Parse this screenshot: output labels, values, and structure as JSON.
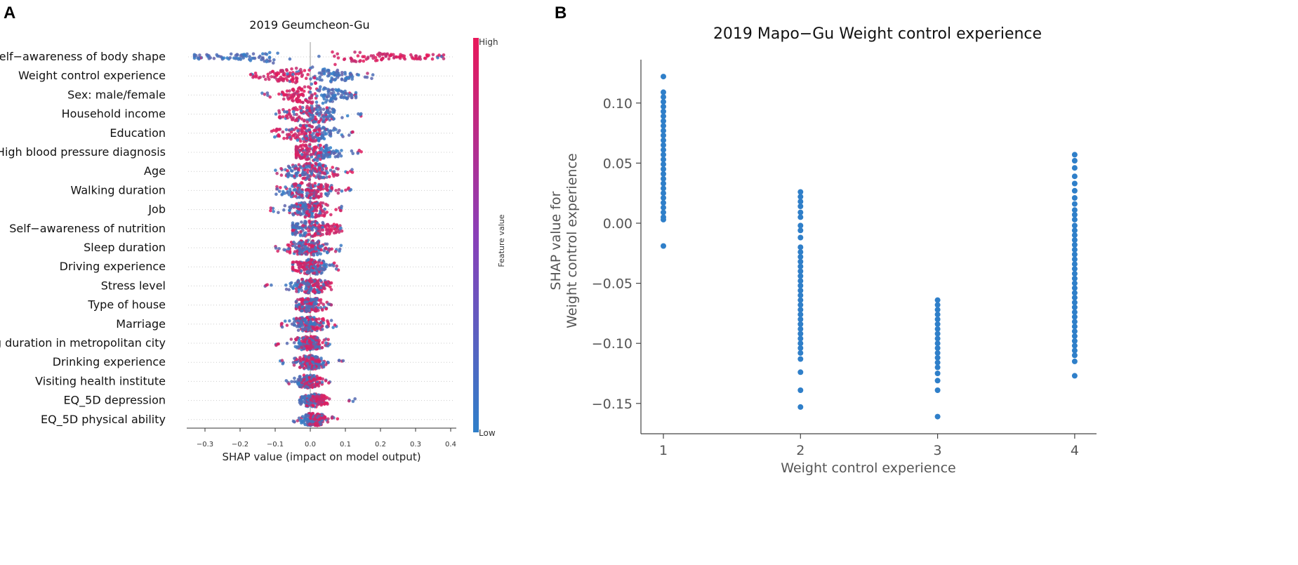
{
  "chart_data": [
    {
      "panel": "A",
      "type": "scatter",
      "subtype": "shap-beeswarm-summary",
      "title": "2019  Geumcheon-Gu",
      "xlabel": "SHAP value (impact on model output)",
      "xlim": [
        -0.35,
        0.4
      ],
      "xticks": [
        -0.3,
        -0.2,
        -0.1,
        0.0,
        0.1,
        0.2,
        0.3,
        0.4
      ],
      "xtick_labels": [
        "−0.3",
        "−0.2",
        "−0.1",
        "0.0",
        "0.1",
        "0.2",
        "0.3",
        "0.4"
      ],
      "colorbar": {
        "title": "Feature value",
        "high_label": "High",
        "low_label": "Low",
        "low_color": "#2f7fc9",
        "high_color": "#e8185a"
      },
      "features": [
        {
          "name": "Self−awareness of body shape",
          "range": [
            -0.33,
            0.38
          ],
          "low_center": -0.2,
          "high_center": 0.22,
          "spread": 0.075
        },
        {
          "name": "Weight control experience",
          "range": [
            -0.17,
            0.18
          ],
          "low_center": 0.07,
          "high_center": -0.08,
          "spread": 0.045
        },
        {
          "name": "Sex: male/female",
          "range": [
            -0.14,
            0.13
          ],
          "low_center": 0.06,
          "high_center": -0.04,
          "spread": 0.035
        },
        {
          "name": "Household income",
          "range": [
            -0.1,
            0.15
          ],
          "low_center": 0.03,
          "high_center": -0.02,
          "spread": 0.035
        },
        {
          "name": "Education",
          "range": [
            -0.11,
            0.13
          ],
          "low_center": 0.02,
          "high_center": -0.03,
          "spread": 0.035
        },
        {
          "name": "High blood pressure diagnosis",
          "range": [
            -0.04,
            0.15
          ],
          "low_center": 0.04,
          "high_center": -0.02,
          "spread": 0.03
        },
        {
          "name": "Age",
          "range": [
            -0.1,
            0.12
          ],
          "low_center": -0.01,
          "high_center": 0.01,
          "spread": 0.035
        },
        {
          "name": "Walking duration",
          "range": [
            -0.1,
            0.12
          ],
          "low_center": -0.02,
          "high_center": 0.01,
          "spread": 0.035
        },
        {
          "name": "Job",
          "range": [
            -0.12,
            0.09
          ],
          "low_center": -0.01,
          "high_center": 0.01,
          "spread": 0.03
        },
        {
          "name": "Self−awareness of nutrition",
          "range": [
            -0.05,
            0.09
          ],
          "low_center": -0.02,
          "high_center": 0.02,
          "spread": 0.03
        },
        {
          "name": "Sleep duration",
          "range": [
            -0.1,
            0.09
          ],
          "low_center": -0.01,
          "high_center": 0.0,
          "spread": 0.03
        },
        {
          "name": "Driving experience",
          "range": [
            -0.05,
            0.08
          ],
          "low_center": 0.02,
          "high_center": -0.01,
          "spread": 0.025
        },
        {
          "name": "Stress level",
          "range": [
            -0.13,
            0.06
          ],
          "low_center": -0.01,
          "high_center": 0.01,
          "spread": 0.025
        },
        {
          "name": "Type of house",
          "range": [
            -0.04,
            0.06
          ],
          "low_center": 0.0,
          "high_center": 0.0,
          "spread": 0.02
        },
        {
          "name": "Marriage",
          "range": [
            -0.09,
            0.08
          ],
          "low_center": -0.01,
          "high_center": 0.0,
          "spread": 0.025
        },
        {
          "name": "Living duration in metropolitan city",
          "range": [
            -0.1,
            0.06
          ],
          "low_center": -0.01,
          "high_center": 0.0,
          "spread": 0.02
        },
        {
          "name": "Drinking experience",
          "range": [
            -0.09,
            0.1
          ],
          "low_center": 0.0,
          "high_center": 0.0,
          "spread": 0.02
        },
        {
          "name": "Visiting health institute",
          "range": [
            -0.07,
            0.06
          ],
          "low_center": -0.01,
          "high_center": 0.0,
          "spread": 0.015
        },
        {
          "name": "EQ_5D depression",
          "range": [
            -0.03,
            0.13
          ],
          "low_center": 0.0,
          "high_center": 0.02,
          "spread": 0.015
        },
        {
          "name": "EQ_5D physical ability",
          "range": [
            -0.05,
            0.08
          ],
          "low_center": 0.0,
          "high_center": 0.02,
          "spread": 0.015
        }
      ]
    },
    {
      "panel": "B",
      "type": "scatter",
      "subtype": "shap-dependence",
      "title": "2019  Mapo−Gu Weight control experience",
      "xlabel": "Weight control experience",
      "ylabel": [
        "SHAP value for",
        "Weight control experience"
      ],
      "xlim": [
        0.75,
        4.3
      ],
      "ylim": [
        -0.165,
        0.135
      ],
      "xticks": [
        1,
        2,
        3,
        4
      ],
      "xtick_labels": [
        "1",
        "2",
        "3",
        "4"
      ],
      "yticks": [
        0.1,
        0.05,
        0.0,
        -0.05,
        -0.1,
        -0.15
      ],
      "ytick_labels": [
        "0.10",
        "0.05",
        "0.00",
        "−0.05",
        "−0.10",
        "−0.15"
      ],
      "point_color": "#2f7fc9",
      "series": [
        {
          "x": 1,
          "y": [
            0.122,
            0.109,
            0.105,
            0.101,
            0.097,
            0.093,
            0.089,
            0.085,
            0.081,
            0.077,
            0.073,
            0.069,
            0.065,
            0.061,
            0.057,
            0.053,
            0.049,
            0.045,
            0.041,
            0.037,
            0.033,
            0.029,
            0.025,
            0.021,
            0.017,
            0.013,
            0.009,
            0.005,
            0.003,
            -0.019
          ]
        },
        {
          "x": 2,
          "y": [
            0.026,
            0.022,
            0.018,
            0.014,
            0.009,
            0.005,
            -0.002,
            -0.006,
            -0.012,
            -0.02,
            -0.024,
            -0.028,
            -0.032,
            -0.036,
            -0.04,
            -0.044,
            -0.048,
            -0.052,
            -0.056,
            -0.06,
            -0.064,
            -0.068,
            -0.072,
            -0.076,
            -0.08,
            -0.084,
            -0.088,
            -0.092,
            -0.096,
            -0.1,
            -0.104,
            -0.108,
            -0.113,
            -0.124,
            -0.139,
            -0.153
          ]
        },
        {
          "x": 3,
          "y": [
            -0.064,
            -0.068,
            -0.072,
            -0.076,
            -0.08,
            -0.084,
            -0.088,
            -0.092,
            -0.096,
            -0.1,
            -0.104,
            -0.108,
            -0.112,
            -0.116,
            -0.12,
            -0.125,
            -0.131,
            -0.139,
            -0.161
          ]
        },
        {
          "x": 4,
          "y": [
            0.057,
            0.052,
            0.046,
            0.039,
            0.033,
            0.027,
            0.021,
            0.016,
            0.011,
            0.007,
            0.003,
            -0.002,
            -0.006,
            -0.01,
            -0.014,
            -0.018,
            -0.022,
            -0.026,
            -0.03,
            -0.034,
            -0.038,
            -0.042,
            -0.046,
            -0.05,
            -0.054,
            -0.058,
            -0.062,
            -0.066,
            -0.07,
            -0.074,
            -0.078,
            -0.082,
            -0.086,
            -0.09,
            -0.094,
            -0.098,
            -0.102,
            -0.106,
            -0.11,
            -0.115,
            -0.127
          ]
        }
      ]
    }
  ]
}
